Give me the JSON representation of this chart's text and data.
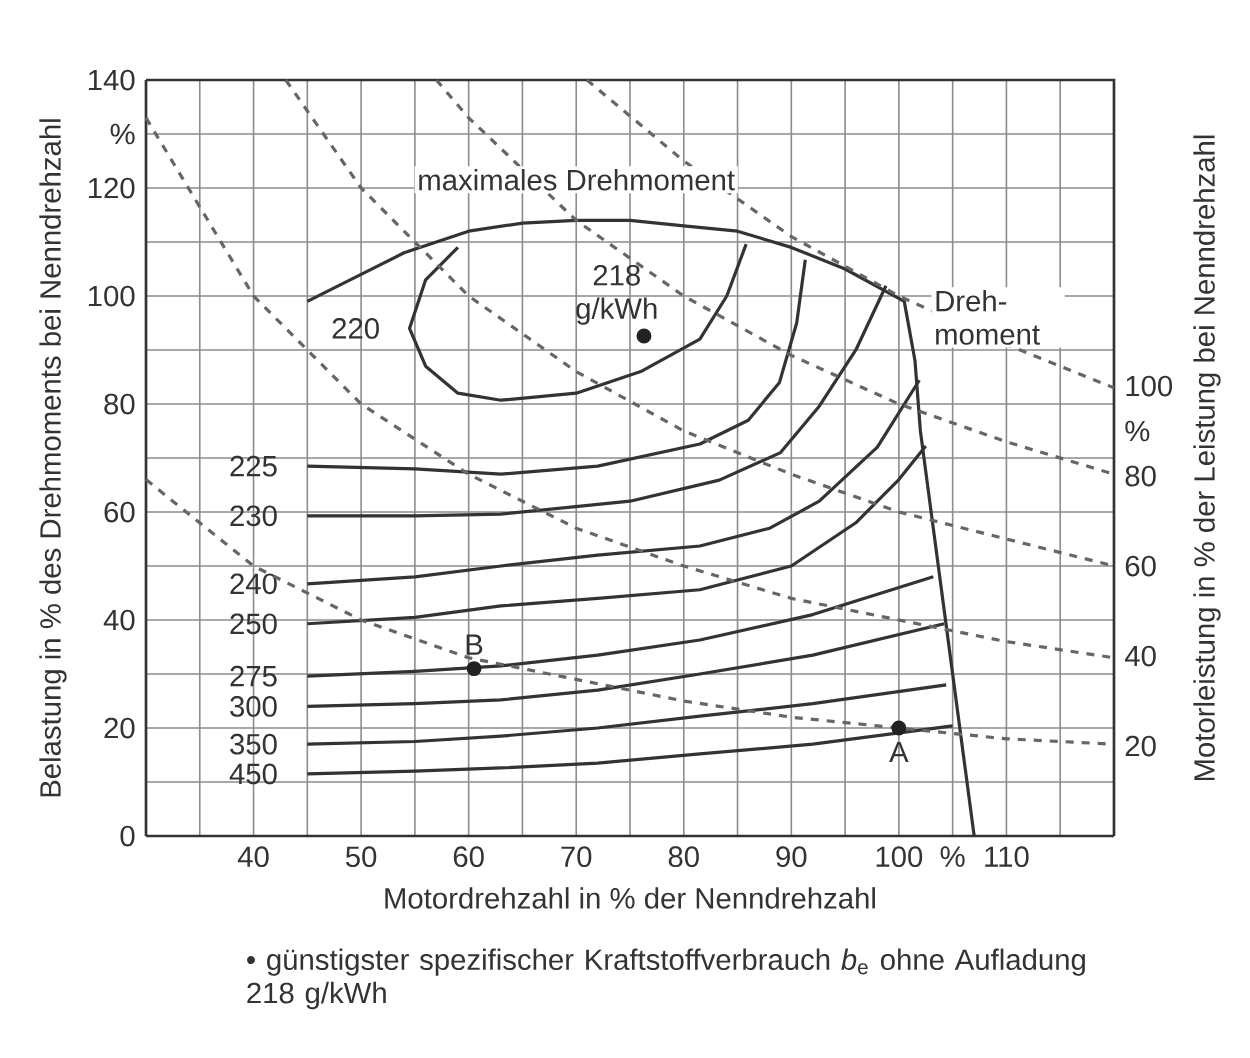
{
  "chart_data": {
    "type": "line",
    "xlabel": "Motordrehzahl in % der Nenndrehzahl",
    "ylabel": "Belastung in % des Drehmoments bei Nenndrehzahl",
    "y2label": "Motorleistung in % der Leistung bei Nenndrehzahl",
    "xlim": [
      30,
      120
    ],
    "ylim": [
      0,
      140
    ],
    "y2lim": [
      0,
      168
    ],
    "xticks": [
      {
        "value": 35,
        "label": null
      },
      40,
      {
        "value": 45,
        "label": null
      },
      50,
      {
        "value": 55,
        "label": null
      },
      60,
      {
        "value": 65,
        "label": null
      },
      70,
      {
        "value": 75,
        "label": null
      },
      80,
      {
        "value": 85,
        "label": null
      },
      90,
      {
        "value": 95,
        "label": null
      },
      100,
      {
        "value": 105,
        "label": "%"
      },
      110,
      {
        "value": 115,
        "label": null
      }
    ],
    "yticks": [
      0,
      {
        "value": 10,
        "label": null
      },
      20,
      {
        "value": 30,
        "label": null
      },
      40,
      {
        "value": 50,
        "label": null
      },
      60,
      {
        "value": 70,
        "label": null
      },
      80,
      {
        "value": 90,
        "label": null
      },
      100,
      {
        "value": 110,
        "label": null
      },
      120,
      {
        "value": 130,
        "label": "%"
      },
      140
    ],
    "y2ticks": [
      20,
      40,
      60,
      80,
      {
        "value": 90,
        "label": "%"
      },
      100
    ],
    "grid": true,
    "line_style": "solid",
    "marker": "none",
    "series": [
      {
        "name": "220",
        "color": "#333333",
        "x": [
          59,
          56,
          54.5,
          56,
          59,
          63,
          70,
          76,
          81.5,
          84,
          85.8
        ],
        "values": [
          109,
          103,
          94,
          87,
          82,
          80.7,
          82,
          86,
          92,
          100,
          109.6
        ]
      },
      {
        "name": "225",
        "color": "#333333",
        "x": [
          45,
          55,
          63,
          72,
          81.5,
          86,
          88.9,
          90.5,
          91.3
        ],
        "values": [
          68.5,
          68,
          67,
          68.5,
          72.6,
          77,
          84,
          95,
          106.7
        ]
      },
      {
        "name": "230",
        "color": "#333333",
        "x": [
          45,
          55,
          63,
          75,
          83.3,
          89,
          92.6,
          96,
          98.8
        ],
        "values": [
          59.3,
          59.3,
          59.6,
          62,
          65.9,
          71,
          79.6,
          90,
          101.9
        ]
      },
      {
        "name": "240",
        "color": "#333333",
        "x": [
          45,
          55,
          63,
          72,
          81.5,
          88,
          92.6,
          98,
          101.9
        ],
        "values": [
          46.7,
          48,
          50,
          52,
          53.7,
          57,
          62,
          72,
          84.4
        ]
      },
      {
        "name": "250",
        "color": "#333333",
        "x": [
          45,
          55,
          63,
          72,
          81.5,
          90,
          96,
          100,
          102.5
        ],
        "values": [
          39.3,
          40.5,
          42.6,
          44,
          45.6,
          50,
          58,
          66,
          72.2
        ]
      },
      {
        "name": "275",
        "color": "#333333",
        "x": [
          45,
          55,
          63,
          72,
          81.5,
          92,
          103.2
        ],
        "values": [
          29.6,
          30.5,
          31.5,
          33.5,
          36.3,
          41,
          48
        ]
      },
      {
        "name": "300",
        "color": "#333333",
        "x": [
          45,
          55,
          63,
          72,
          81.5,
          92,
          104.2
        ],
        "values": [
          24,
          24.5,
          25.2,
          27,
          30,
          33.5,
          39.3
        ]
      },
      {
        "name": "350",
        "color": "#333333",
        "x": [
          45,
          55,
          63,
          72,
          81.5,
          92,
          104.4
        ],
        "values": [
          17,
          17.5,
          18.5,
          20,
          22.2,
          24.5,
          28
        ]
      },
      {
        "name": "450",
        "color": "#333333",
        "x": [
          45,
          55,
          63,
          72,
          81.5,
          92,
          105
        ],
        "values": [
          11.5,
          12,
          12.6,
          13.5,
          15.2,
          17,
          20.4
        ]
      },
      {
        "color": "#333333",
        "x": [
          45,
          50,
          54,
          60,
          65,
          70,
          75,
          80,
          85,
          90,
          95,
          100.5,
          101.5,
          102,
          103,
          104,
          105,
          106,
          107
        ],
        "values": [
          99,
          104,
          108,
          112,
          113.5,
          114,
          114,
          113,
          112,
          109,
          105,
          99,
          88,
          75,
          60,
          45,
          30,
          15,
          0
        ]
      },
      {
        "color": "#666666",
        "line_style": "dashed",
        "x": [
          30,
          40,
          50,
          60,
          70,
          80,
          90,
          100,
          110,
          120
        ],
        "values": [
          66,
          50,
          40,
          33,
          29,
          25,
          22,
          20,
          18,
          17
        ]
      },
      {
        "color": "#666666",
        "line_style": "dashed",
        "x": [
          30,
          40,
          50,
          60,
          70,
          80,
          90,
          100,
          110,
          120
        ],
        "values": [
          133,
          100,
          80,
          67,
          57,
          50,
          44,
          40,
          36,
          33
        ]
      },
      {
        "color": "#666666",
        "line_style": "dashed",
        "x": [
          43,
          50,
          60,
          70,
          80,
          90,
          100,
          110,
          120
        ],
        "values": [
          140,
          120,
          100,
          86,
          75,
          67,
          60,
          55,
          50
        ]
      },
      {
        "color": "#666666",
        "line_style": "dashed",
        "x": [
          57,
          60,
          70,
          80,
          90,
          100,
          110,
          120
        ],
        "values": [
          140,
          133,
          114,
          100,
          89,
          80,
          73,
          67
        ]
      },
      {
        "color": "#666666",
        "line_style": "dashed",
        "x": [
          71,
          80,
          90,
          100,
          110,
          120
        ],
        "values": [
          140,
          125,
          111,
          100,
          91,
          83
        ]
      },
      {
        "name": "218 g/kWh",
        "type": "scatter",
        "marker": "circle",
        "color": "#222222",
        "x": [
          76.3
        ],
        "values": [
          92.6
        ]
      },
      {
        "name": "B",
        "type": "scatter",
        "marker": "circle",
        "color": "#222222",
        "x": [
          60.5
        ],
        "values": [
          31
        ]
      },
      {
        "name": "A",
        "type": "scatter",
        "marker": "circle",
        "color": "#222222",
        "x": [
          100
        ],
        "values": [
          20
        ]
      }
    ],
    "annotations": [
      {
        "text": "maximales Drehmoment",
        "x": 70,
        "y": 114
      },
      {
        "text": "Dreh- moment",
        "x": 100.5,
        "y": 99
      },
      "• günstigster spezifischer Kraftstoffverbrauch *b*$_{e}$ ohne Aufladung 218 g/kWh"
    ]
  }
}
